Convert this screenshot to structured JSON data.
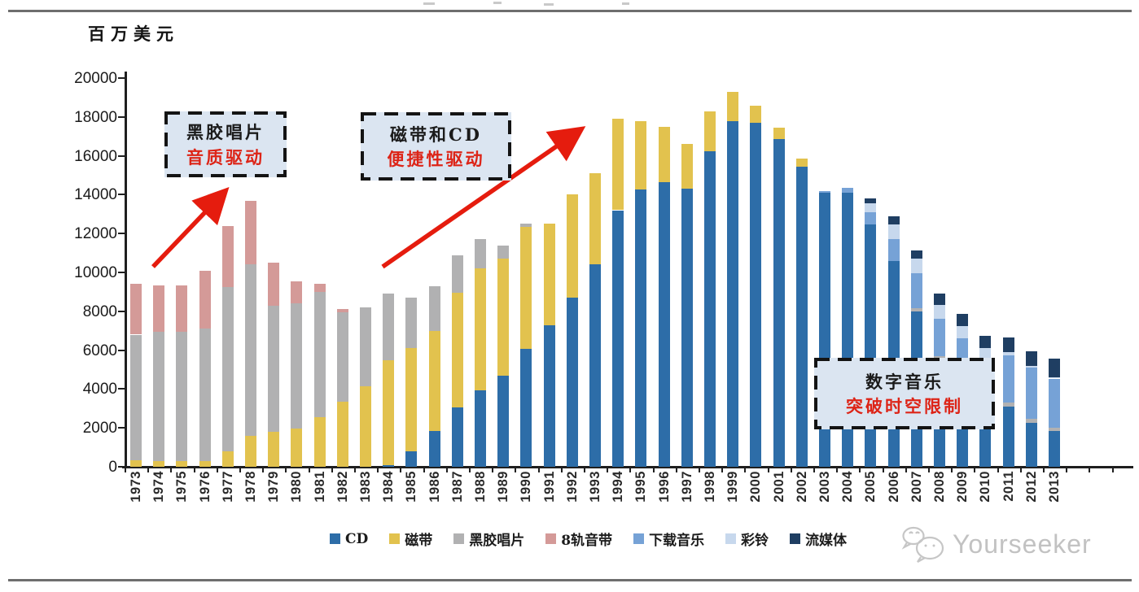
{
  "y_axis_title": "百万美元",
  "chart_data": {
    "type": "bar",
    "stacked": true,
    "title": "",
    "ylabel": "百万美元",
    "ylim": [
      0,
      20000
    ],
    "y_ticks": [
      0,
      2000,
      4000,
      6000,
      8000,
      10000,
      12000,
      14000,
      16000,
      18000,
      20000
    ],
    "grid": false,
    "legend_position": "bottom",
    "years": [
      1973,
      1974,
      1975,
      1976,
      1977,
      1978,
      1979,
      1980,
      1981,
      1982,
      1983,
      1984,
      1985,
      1986,
      1987,
      1988,
      1989,
      1990,
      1991,
      1992,
      1993,
      1994,
      1995,
      1996,
      1997,
      1998,
      1999,
      2000,
      2001,
      2002,
      2003,
      2004,
      2005,
      2006,
      2007,
      2008,
      2009,
      2010,
      2011,
      2012,
      2013
    ],
    "series": [
      {
        "key": "cd",
        "name": "CD",
        "color": "#2d6da8",
        "values": [
          0,
          0,
          0,
          0,
          0,
          0,
          0,
          0,
          0,
          0,
          0,
          100,
          800,
          1850,
          3050,
          3950,
          4700,
          6050,
          7300,
          8700,
          10400,
          13200,
          14250,
          14650,
          14300,
          16250,
          17800,
          17700,
          16850,
          15450,
          14100,
          14100,
          12450,
          10600,
          8000,
          5500,
          4300,
          3350,
          3100,
          2250,
          1850
        ]
      },
      {
        "key": "cassette",
        "name": "磁带",
        "color": "#e2c24e",
        "values": [
          350,
          300,
          300,
          300,
          800,
          1600,
          1800,
          1950,
          2550,
          3350,
          4150,
          5400,
          5300,
          5150,
          5900,
          6250,
          6000,
          6300,
          5200,
          5300,
          4700,
          4700,
          3550,
          2850,
          2300,
          2050,
          1500,
          900,
          600,
          400,
          0,
          0,
          0,
          0,
          0,
          0,
          0,
          0,
          0,
          0,
          0
        ]
      },
      {
        "key": "vinyl",
        "name": "黑胶唱片",
        "color": "#b1b1b2",
        "values": [
          6450,
          6650,
          6650,
          6800,
          8450,
          8800,
          6500,
          6450,
          6450,
          4600,
          4050,
          3400,
          2600,
          2300,
          1950,
          1500,
          700,
          150,
          0,
          0,
          0,
          0,
          0,
          0,
          0,
          0,
          0,
          0,
          0,
          0,
          0,
          0,
          0,
          0,
          150,
          180,
          170,
          150,
          200,
          200,
          170
        ]
      },
      {
        "key": "eight_track",
        "name": "8轨音带",
        "color": "#d49a98",
        "values": [
          2600,
          2400,
          2400,
          3000,
          3150,
          3300,
          2200,
          1150,
          400,
          150,
          0,
          0,
          0,
          0,
          0,
          0,
          0,
          0,
          0,
          0,
          0,
          0,
          0,
          0,
          0,
          0,
          0,
          0,
          0,
          0,
          0,
          0,
          0,
          0,
          0,
          0,
          0,
          0,
          0,
          0,
          0
        ]
      },
      {
        "key": "download",
        "name": "下载音乐",
        "color": "#76a2d6",
        "values": [
          0,
          0,
          0,
          0,
          0,
          0,
          0,
          0,
          0,
          0,
          0,
          0,
          0,
          0,
          0,
          0,
          0,
          0,
          0,
          0,
          0,
          0,
          0,
          0,
          0,
          0,
          0,
          0,
          0,
          0,
          100,
          250,
          650,
          1100,
          1800,
          1950,
          2150,
          2100,
          2450,
          2650,
          2520
        ]
      },
      {
        "key": "ringtone",
        "name": "彩铃",
        "color": "#c7d8ed",
        "values": [
          0,
          0,
          0,
          0,
          0,
          0,
          0,
          0,
          0,
          0,
          0,
          0,
          0,
          0,
          0,
          0,
          0,
          0,
          0,
          0,
          0,
          0,
          0,
          0,
          0,
          0,
          0,
          0,
          0,
          0,
          0,
          0,
          450,
          750,
          770,
          680,
          600,
          500,
          150,
          100,
          80
        ]
      },
      {
        "key": "streaming",
        "name": "流媒体",
        "color": "#1f3e62",
        "values": [
          0,
          0,
          0,
          0,
          0,
          0,
          0,
          0,
          0,
          0,
          0,
          0,
          0,
          0,
          0,
          0,
          0,
          0,
          0,
          0,
          0,
          0,
          0,
          0,
          0,
          0,
          0,
          0,
          0,
          0,
          0,
          0,
          250,
          450,
          430,
          590,
          630,
          650,
          750,
          725,
          950
        ]
      }
    ]
  },
  "annotations": [
    {
      "line1": "黑胶唱片",
      "line2": "音质驱动"
    },
    {
      "line1": "磁带和CD",
      "line2": "便捷性驱动"
    },
    {
      "line1": "数字音乐",
      "line2": "突破时空限制"
    }
  ],
  "watermark": {
    "text": "Yourseeker",
    "icon": "wechat-icon"
  },
  "colors": {
    "annotation_bg": "#dbe5f1",
    "annotation_text": "#1b1b1b",
    "annotation_red": "#dd2417",
    "arrow_red": "#e51c0e",
    "axis": "#1f1f1f",
    "rule_gray": "#6e6e6e",
    "watermark_gray": "#c2c2c2"
  }
}
